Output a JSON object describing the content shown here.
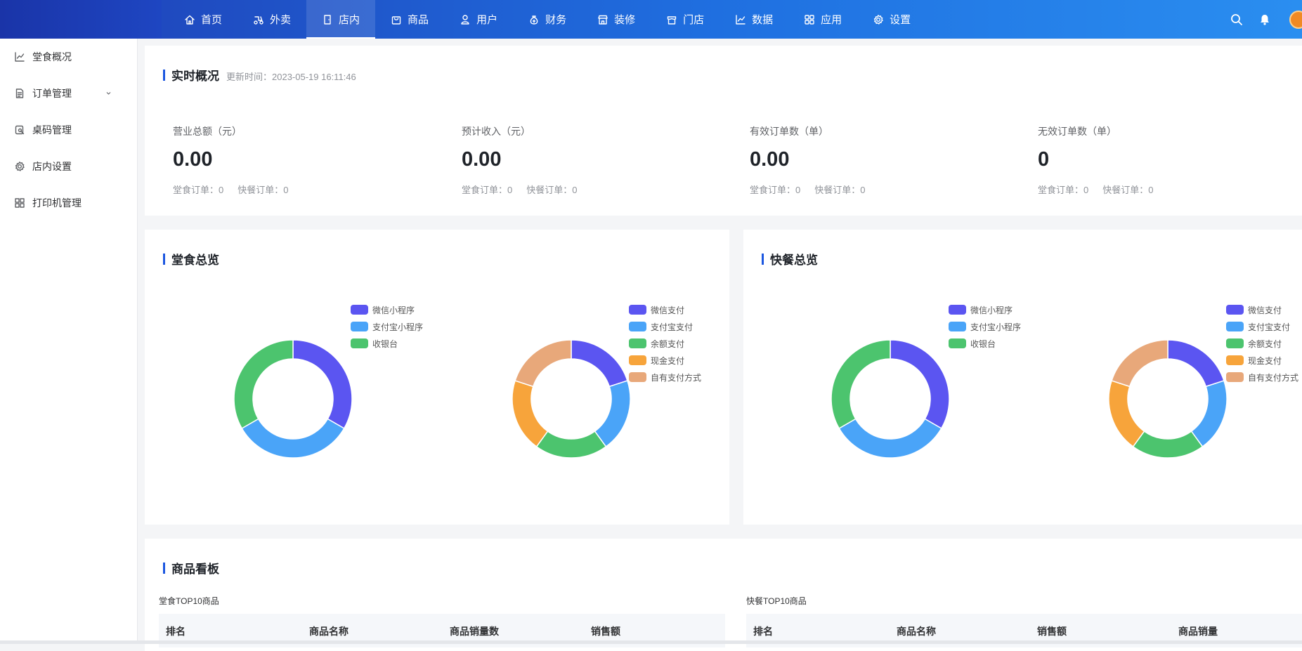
{
  "topnav": {
    "items": [
      {
        "label": "首页",
        "icon": "home-icon"
      },
      {
        "label": "外卖",
        "icon": "scooter-icon"
      },
      {
        "label": "店内",
        "icon": "door-icon",
        "active": true
      },
      {
        "label": "商品",
        "icon": "bag-icon"
      },
      {
        "label": "用户",
        "icon": "user-icon"
      },
      {
        "label": "财务",
        "icon": "moneybag-icon"
      },
      {
        "label": "装修",
        "icon": "storefront-icon"
      },
      {
        "label": "门店",
        "icon": "shop-icon"
      },
      {
        "label": "数据",
        "icon": "chart-icon"
      },
      {
        "label": "应用",
        "icon": "apps-icon"
      },
      {
        "label": "设置",
        "icon": "gear-icon"
      }
    ]
  },
  "sidebar": {
    "items": [
      {
        "label": "堂食概况",
        "icon": "chart-icon"
      },
      {
        "label": "订单管理",
        "icon": "document-icon",
        "expandable": true
      },
      {
        "label": "桌码管理",
        "icon": "tablecode-icon"
      },
      {
        "label": "店内设置",
        "icon": "gear-icon"
      },
      {
        "label": "打印机管理",
        "icon": "grid-icon"
      }
    ]
  },
  "realtime": {
    "title": "实时概况",
    "updated": "更新时间：2023-05-19 16:11:46",
    "stats": [
      {
        "label": "营业总额（元）",
        "value": "0.00",
        "dine": "堂食订单：0",
        "fast": "快餐订单：0"
      },
      {
        "label": "预计收入（元）",
        "value": "0.00",
        "dine": "堂食订单：0",
        "fast": "快餐订单：0"
      },
      {
        "label": "有效订单数（单）",
        "value": "0.00",
        "dine": "堂食订单：0",
        "fast": "快餐订单：0"
      },
      {
        "label": "无效订单数（单）",
        "value": "0",
        "dine": "堂食订单：0",
        "fast": "快餐订单：0"
      }
    ]
  },
  "dine_overview": {
    "title": "堂食总览"
  },
  "fast_overview": {
    "title": "快餐总览"
  },
  "colors": {
    "purple": "#5b55f1",
    "blue": "#4aa4f8",
    "green": "#4cc46e",
    "orange": "#f7a43b",
    "peach": "#e8a87a",
    "accent": "#1c57e0"
  },
  "chart_data": [
    {
      "type": "pie",
      "chart": "堂食总览-渠道",
      "categories": [
        "微信小程序",
        "支付宝小程序",
        "收银台"
      ],
      "values": [
        1,
        1,
        1
      ]
    },
    {
      "type": "pie",
      "chart": "堂食总览-支付方式",
      "categories": [
        "微信支付",
        "支付宝支付",
        "余额支付",
        "现金支付",
        "自有支付方式"
      ],
      "values": [
        1,
        1,
        1,
        1,
        1
      ]
    },
    {
      "type": "pie",
      "chart": "快餐总览-渠道",
      "categories": [
        "微信小程序",
        "支付宝小程序",
        "收银台"
      ],
      "values": [
        1,
        1,
        1
      ]
    },
    {
      "type": "pie",
      "chart": "快餐总览-支付方式",
      "categories": [
        "微信支付",
        "支付宝支付",
        "余额支付",
        "现金支付",
        "自有支付方式"
      ],
      "values": [
        1,
        1,
        1,
        1,
        1
      ]
    }
  ],
  "goods_board": {
    "title": "商品看板",
    "dine_top": {
      "title": "堂食TOP10商品",
      "columns": [
        "排名",
        "商品名称",
        "商品销量数",
        "销售额"
      ]
    },
    "fast_top": {
      "title": "快餐TOP10商品",
      "columns": [
        "排名",
        "商品名称",
        "销售额",
        "商品销量"
      ]
    }
  }
}
